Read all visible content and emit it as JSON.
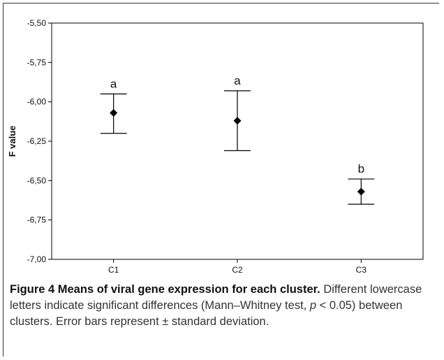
{
  "chart_data": {
    "type": "scatter",
    "title": "",
    "xlabel": "",
    "ylabel": "F value",
    "categories": [
      "C1",
      "C2",
      "C3"
    ],
    "means": [
      -6.07,
      -6.12,
      -6.57
    ],
    "error_low": [
      -6.2,
      -6.31,
      -6.65
    ],
    "error_high": [
      -5.95,
      -5.93,
      -6.49
    ],
    "significance_letters": [
      "a",
      "a",
      "b"
    ],
    "ylim": [
      -7.0,
      -5.5
    ],
    "yticks": [
      "-5,50",
      "-5,75",
      "-6,00",
      "-6,25",
      "-6,50",
      "-6,75",
      "-7,00"
    ],
    "ytick_values": [
      -5.5,
      -5.75,
      -6.0,
      -6.25,
      -6.5,
      -6.75,
      -7.0
    ],
    "grid": false,
    "marker": "diamond",
    "color": "#000000"
  },
  "caption": {
    "title": "Figure 4 Means of viral gene expression for each cluster.",
    "text_before_p": " Different lowercase letters indicate significant differences (Mann–Whitney test, ",
    "p_symbol": "p",
    "text_after_p": " < 0.05) between clusters. Error bars represent ± standard deviation."
  }
}
